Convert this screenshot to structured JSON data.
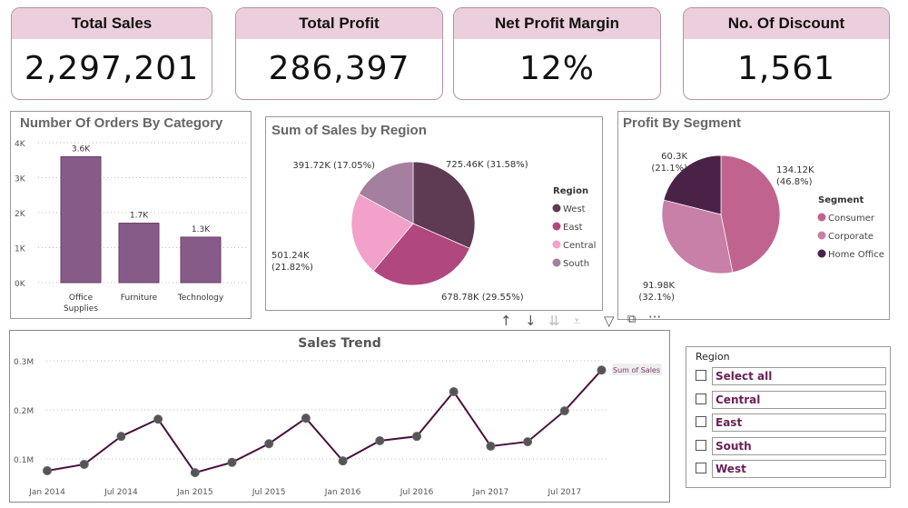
{
  "kpis": [
    {
      "label": "Total Sales",
      "value": "2,297,201"
    },
    {
      "label": "Total Profit",
      "value": "286,397"
    },
    {
      "label": "Net Profit Margin",
      "value": "12%"
    },
    {
      "label": "No. Of Discount",
      "value": "1,561"
    }
  ],
  "orders_chart": {
    "title": "Number Of Orders By Category",
    "type": "bar",
    "categories": [
      "Office Supplies",
      "Furniture",
      "Technology"
    ],
    "category_lines": [
      [
        "Office",
        "Supplies"
      ],
      [
        "Furniture"
      ],
      [
        "Technology"
      ]
    ],
    "values": [
      3600,
      1700,
      1300
    ],
    "data_labels": [
      "3.6K",
      "1.7K",
      "1.3K"
    ],
    "yticks": [
      "0K",
      "1K",
      "2K",
      "3K",
      "4K"
    ],
    "ylim": [
      0,
      4000
    ],
    "color": "#875b87"
  },
  "region_chart": {
    "title": "Sum of Sales by Region",
    "type": "pie",
    "legend_title": "Region",
    "slices": [
      {
        "name": "West",
        "value": 725.46,
        "label": "725.46K (31.58%)",
        "color": "#5e3b53"
      },
      {
        "name": "East",
        "value": 678.78,
        "label": "678.78K (29.55%)",
        "color": "#b0477e"
      },
      {
        "name": "Central",
        "value": 501.24,
        "label1": "501.24K",
        "label2": "(21.82%)",
        "color": "#f2a1cb"
      },
      {
        "name": "South",
        "value": 391.72,
        "label": "391.72K (17.05%)",
        "color": "#a47f9f"
      }
    ]
  },
  "segment_chart": {
    "title": "Profit By Segment",
    "type": "pie",
    "legend_title": "Segment",
    "slices": [
      {
        "name": "Consumer",
        "value": 134.12,
        "label1": "134.12K",
        "label2": "(46.8%)",
        "color": "#c0648f"
      },
      {
        "name": "Corporate",
        "value": 91.98,
        "label1": "91.98K",
        "label2": "(32.1%)",
        "color": "#c87fa8"
      },
      {
        "name": "Home Office",
        "value": 60.3,
        "label1": "60.3K",
        "label2": "(21.1%)",
        "color": "#4a2248"
      }
    ]
  },
  "chart_data": {
    "type": "line",
    "title": "Sales Trend",
    "series_name": "Sum of Sales",
    "ylim": [
      0.05,
      0.3
    ],
    "yticks": [
      {
        "v": 0.1,
        "t": "0.1M"
      },
      {
        "v": 0.2,
        "t": "0.2M"
      },
      {
        "v": 0.3,
        "t": "0.3M"
      }
    ],
    "x": [
      "Jan 2014",
      "Apr 2014",
      "Jul 2014",
      "Oct 2014",
      "Jan 2015",
      "Apr 2015",
      "Jul 2015",
      "Oct 2015",
      "Jan 2016",
      "Apr 2016",
      "Jul 2016",
      "Oct 2016",
      "Jan 2017",
      "Apr 2017",
      "Jul 2017",
      "Oct 2017"
    ],
    "xtick_labels": [
      "Jan 2014",
      "Jul 2014",
      "Jan 2015",
      "Jul 2015",
      "Jan 2016",
      "Jul 2016",
      "Jan 2017",
      "Jul 2017"
    ],
    "values": [
      0.076,
      0.089,
      0.146,
      0.181,
      0.072,
      0.093,
      0.131,
      0.183,
      0.096,
      0.137,
      0.146,
      0.237,
      0.126,
      0.135,
      0.198,
      0.281
    ],
    "color": "#4a1040"
  },
  "slicer": {
    "title": "Region",
    "items": [
      "Select all",
      "Central",
      "East",
      "South",
      "West"
    ]
  }
}
